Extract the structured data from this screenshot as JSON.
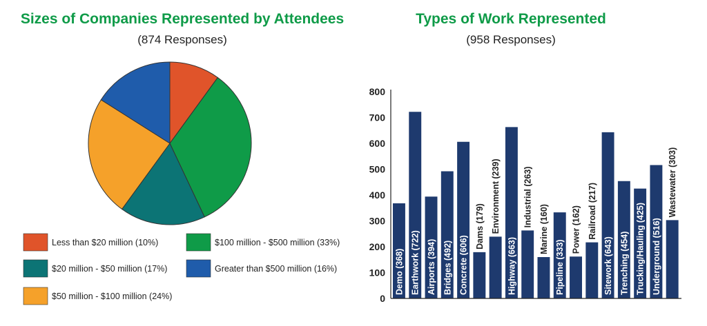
{
  "left_chart": {
    "title": "Sizes of Companies Represented by Attendees",
    "subtitle": "(874 Responses)"
  },
  "right_chart": {
    "title": "Types of Work Represented",
    "subtitle": "(958 Responses)"
  },
  "chart_data": [
    {
      "type": "pie",
      "title": "Sizes of Companies Represented by Attendees",
      "subtitle": "(874 Responses)",
      "slices": [
        {
          "label": "Less than $20 million (10%)",
          "value": 10,
          "color": "#e0542a"
        },
        {
          "label": "$100 million - $500 million (33%)",
          "value": 33,
          "color": "#0f9b48"
        },
        {
          "label": "$20 million - $50 million (17%)",
          "value": 17,
          "color": "#0c7475"
        },
        {
          "label": "$50 million - $100 million (24%)",
          "value": 24,
          "color": "#f5a12a"
        },
        {
          "label": "Greater than $500 million (16%)",
          "value": 16,
          "color": "#1f5cab"
        }
      ],
      "legend_order": [
        0,
        1,
        2,
        4,
        3
      ],
      "pie_order": [
        0,
        1,
        2,
        3,
        4
      ]
    },
    {
      "type": "bar",
      "title": "Types of Work Represented",
      "subtitle": "(958 Responses)",
      "ylim": [
        0,
        800
      ],
      "yticks": [
        0,
        100,
        200,
        300,
        400,
        500,
        600,
        700,
        800
      ],
      "bar_color": "#1e3a6e",
      "categories": [
        "Demo (368)",
        "Earthwork (722)",
        "Airports (394)",
        "Bridges (492)",
        "Concrete (606)",
        "Dams (179)",
        "Environment (239)",
        "Highway (663)",
        "Industrial (263)",
        "Marine (160)",
        "Pipeline (333)",
        "Power (162)",
        "Railroad (217)",
        "Sitework (643)",
        "Trenching (454)",
        "Trucking/Hauling (425)",
        "Underground (516)",
        "Wastewater (303)"
      ],
      "values": [
        368,
        722,
        394,
        492,
        606,
        179,
        239,
        663,
        263,
        160,
        333,
        162,
        217,
        643,
        454,
        425,
        516,
        303
      ],
      "label_outside": [
        false,
        false,
        false,
        false,
        false,
        true,
        true,
        false,
        true,
        true,
        false,
        true,
        true,
        false,
        false,
        false,
        false,
        true
      ]
    }
  ]
}
